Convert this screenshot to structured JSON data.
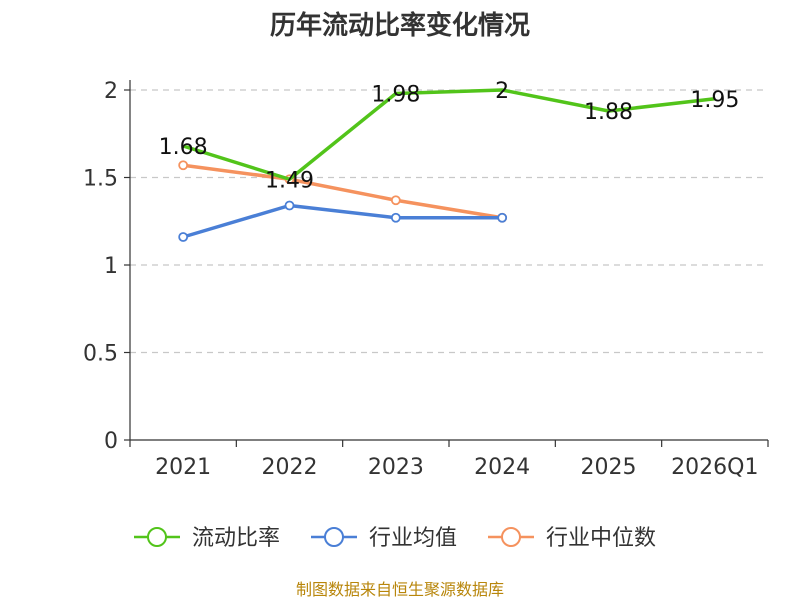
{
  "chart_data": {
    "type": "line",
    "title": "历年流动比率变化情况",
    "categories": [
      "2021",
      "2022",
      "2023",
      "2024",
      "2025",
      "2026Q1"
    ],
    "ylim": [
      0,
      2
    ],
    "yticks": [
      "0",
      "0.5",
      "1",
      "1.5",
      "2"
    ],
    "grid": true,
    "legend_position": "bottom",
    "series": [
      {
        "name": "流动比率",
        "color": "#52c41a",
        "values": [
          1.68,
          1.49,
          1.98,
          2,
          1.88,
          1.95
        ],
        "labels": [
          "1.68",
          "1.49",
          "1.98",
          "2",
          "1.88",
          "1.95"
        ]
      },
      {
        "name": "行业均值",
        "color": "#4a7fd6",
        "values": [
          1.16,
          1.34,
          1.27,
          1.27,
          null,
          null
        ]
      },
      {
        "name": "行业中位数",
        "color": "#f5925e",
        "values": [
          1.57,
          1.49,
          1.37,
          1.27,
          null,
          null
        ]
      }
    ],
    "source": "制图数据来自恒生聚源数据库"
  }
}
